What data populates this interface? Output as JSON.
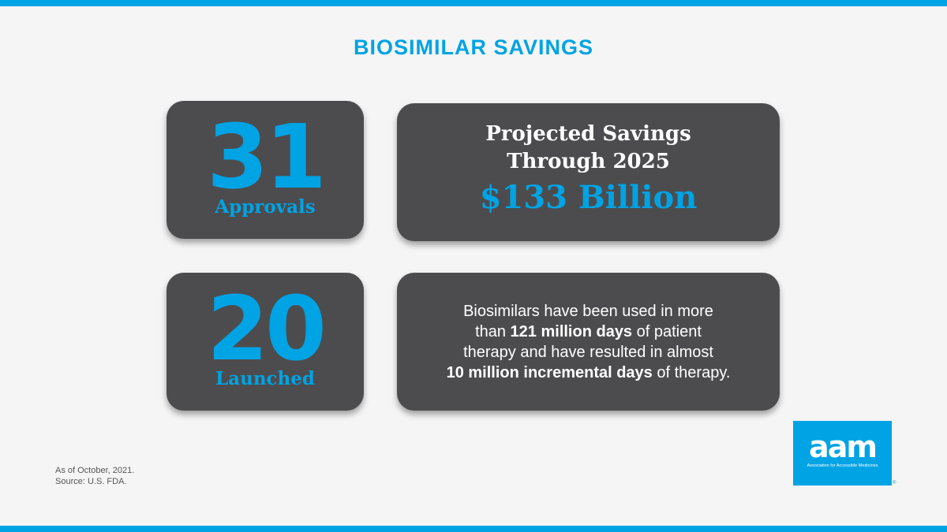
{
  "title": "BIOSIMILAR SAVINGS",
  "stats": [
    {
      "value": "31",
      "label": "Approvals"
    },
    {
      "value": "20",
      "label": "Launched"
    }
  ],
  "savings": {
    "heading_line1": "Projected Savings",
    "heading_line2": "Through 2025",
    "amount": "$133 Billion"
  },
  "info": {
    "line1": "Biosimilars have been used in more",
    "line2_prefix": "than ",
    "line2_bold": "121 million days",
    "line2_suffix": " of patient",
    "line3": "therapy and have resulted in almost",
    "line4_bold": "10 million incremental days",
    "line4_suffix": " of therapy."
  },
  "footnote": {
    "line1": "As of October, 2021.",
    "line2": "Source: U.S. FDA."
  },
  "logo": {
    "word": "aam",
    "subtitle": "Association for Accessible Medicines",
    "reg_mark": "®"
  },
  "colors": {
    "accent": "#00a3e4",
    "card": "#4c4c4e",
    "background": "#f5f5f5"
  }
}
